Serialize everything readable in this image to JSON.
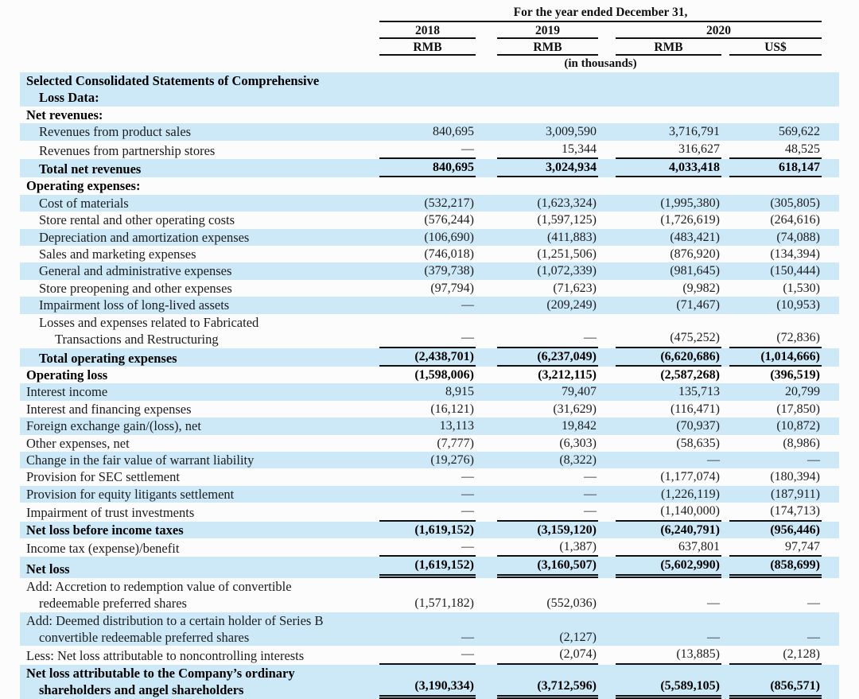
{
  "header": {
    "period_title": "For the year ended December 31,",
    "years": [
      "2018",
      "2019",
      "2020"
    ],
    "currencies": [
      "RMB",
      "RMB",
      "RMB",
      "US$"
    ],
    "units_note": "(in thousands)"
  },
  "colors": {
    "row_highlight": "#cde9f8",
    "rule": "#101010"
  },
  "table": {
    "rows": [
      {
        "label": "Selected Consolidated Statements of Comprehensive",
        "label2": "Loss Data:",
        "indent": 0,
        "indent2": 1,
        "bold": true,
        "shaded": true,
        "values": [
          "",
          "",
          "",
          ""
        ],
        "rule": "none"
      },
      {
        "label": "Net revenues:",
        "indent": 0,
        "bold": true,
        "shaded": false,
        "values": [
          "",
          "",
          "",
          ""
        ],
        "rule": "none"
      },
      {
        "label": "Revenues from product sales",
        "indent": 1,
        "bold": false,
        "shaded": true,
        "values": [
          "840,695",
          "3,009,590",
          "3,716,791",
          "569,622"
        ],
        "rule": "none"
      },
      {
        "label": "Revenues from partnership stores",
        "indent": 1,
        "bold": false,
        "shaded": false,
        "values": [
          "—",
          "15,344",
          "316,627",
          "48,525"
        ],
        "rule": "single"
      },
      {
        "label": "Total net revenues",
        "indent": 1,
        "bold": true,
        "shaded": true,
        "values": [
          "840,695",
          "3,024,934",
          "4,033,418",
          "618,147"
        ],
        "rule": "single"
      },
      {
        "label": "Operating expenses:",
        "indent": 0,
        "bold": true,
        "shaded": false,
        "values": [
          "",
          "",
          "",
          ""
        ],
        "rule": "none"
      },
      {
        "label": "Cost of materials",
        "indent": 1,
        "bold": false,
        "shaded": true,
        "values": [
          "(532,217)",
          "(1,623,324)",
          "(1,995,380)",
          "(305,805)"
        ],
        "rule": "none"
      },
      {
        "label": "Store rental and other operating costs",
        "indent": 1,
        "bold": false,
        "shaded": false,
        "values": [
          "(576,244)",
          "(1,597,125)",
          "(1,726,619)",
          "(264,616)"
        ],
        "rule": "none"
      },
      {
        "label": "Depreciation and amortization expenses",
        "indent": 1,
        "bold": false,
        "shaded": true,
        "values": [
          "(106,690)",
          "(411,883)",
          "(483,421)",
          "(74,088)"
        ],
        "rule": "none"
      },
      {
        "label": "Sales and marketing expenses",
        "indent": 1,
        "bold": false,
        "shaded": false,
        "values": [
          "(746,018)",
          "(1,251,506)",
          "(876,920)",
          "(134,394)"
        ],
        "rule": "none"
      },
      {
        "label": "General and administrative expenses",
        "indent": 1,
        "bold": false,
        "shaded": true,
        "values": [
          "(379,738)",
          "(1,072,339)",
          "(981,645)",
          "(150,444)"
        ],
        "rule": "none"
      },
      {
        "label": "Store preopening and other expenses",
        "indent": 1,
        "bold": false,
        "shaded": false,
        "values": [
          "(97,794)",
          "(71,623)",
          "(9,982)",
          "(1,530)"
        ],
        "rule": "none"
      },
      {
        "label": "Impairment loss of long-lived assets",
        "indent": 1,
        "bold": false,
        "shaded": true,
        "values": [
          "—",
          "(209,249)",
          "(71,467)",
          "(10,953)"
        ],
        "rule": "none"
      },
      {
        "label": "Losses and expenses related to Fabricated",
        "label2": "Transactions and Restructuring",
        "indent": 1,
        "indent2": 2,
        "bold": false,
        "shaded": false,
        "values": [
          "—",
          "—",
          "(475,252)",
          "(72,836)"
        ],
        "rule": "single"
      },
      {
        "label": "Total operating expenses",
        "indent": 1,
        "bold": true,
        "shaded": true,
        "values": [
          "(2,438,701)",
          "(6,237,049)",
          "(6,620,686)",
          "(1,014,666)"
        ],
        "rule": "single"
      },
      {
        "label": "Operating loss",
        "indent": 0,
        "bold": true,
        "shaded": false,
        "values": [
          "(1,598,006)",
          "(3,212,115)",
          "(2,587,268)",
          "(396,519)"
        ],
        "rule": "none"
      },
      {
        "label": "Interest income",
        "indent": 0,
        "bold": false,
        "shaded": true,
        "values": [
          "8,915",
          "79,407",
          "135,713",
          "20,799"
        ],
        "rule": "none"
      },
      {
        "label": "Interest and financing expenses",
        "indent": 0,
        "bold": false,
        "shaded": false,
        "values": [
          "(16,121)",
          "(31,629)",
          "(116,471)",
          "(17,850)"
        ],
        "rule": "none"
      },
      {
        "label": "Foreign exchange gain/(loss), net",
        "indent": 0,
        "bold": false,
        "shaded": true,
        "values": [
          "13,113",
          "19,842",
          "(70,937)",
          "(10,872)"
        ],
        "rule": "none"
      },
      {
        "label": "Other expenses, net",
        "indent": 0,
        "bold": false,
        "shaded": false,
        "values": [
          "(7,777)",
          "(6,303)",
          "(58,635)",
          "(8,986)"
        ],
        "rule": "none"
      },
      {
        "label": "Change in the fair value of warrant liability",
        "indent": 0,
        "bold": false,
        "shaded": true,
        "values": [
          "(19,276)",
          "(8,322)",
          "—",
          "—"
        ],
        "rule": "none"
      },
      {
        "label": "Provision for SEC settlement",
        "indent": 0,
        "bold": false,
        "shaded": false,
        "values": [
          "—",
          "—",
          "(1,177,074)",
          "(180,394)"
        ],
        "rule": "none"
      },
      {
        "label": "Provision for equity litigants settlement",
        "indent": 0,
        "bold": false,
        "shaded": true,
        "values": [
          "—",
          "—",
          "(1,226,119)",
          "(187,911)"
        ],
        "rule": "none"
      },
      {
        "label": "Impairment of trust investments",
        "indent": 0,
        "bold": false,
        "shaded": false,
        "values": [
          "—",
          "—",
          "(1,140,000)",
          "(174,713)"
        ],
        "rule": "single"
      },
      {
        "label": "Net loss before income taxes",
        "indent": 0,
        "bold": true,
        "shaded": true,
        "values": [
          "(1,619,152)",
          "(3,159,120)",
          "(6,240,791)",
          "(956,446)"
        ],
        "rule": "none"
      },
      {
        "label": "Income tax (expense)/benefit",
        "indent": 0,
        "bold": false,
        "shaded": false,
        "values": [
          "—",
          "(1,387)",
          "637,801",
          "97,747"
        ],
        "rule": "single"
      },
      {
        "label": "Net loss",
        "indent": 0,
        "bold": true,
        "shaded": true,
        "values": [
          "(1,619,152)",
          "(3,160,507)",
          "(5,602,990)",
          "(858,699)"
        ],
        "rule": "double"
      },
      {
        "label": "Add: Accretion to redemption value of convertible",
        "label2": "redeemable preferred shares",
        "indent": 0,
        "indent2": 1,
        "bold": false,
        "shaded": false,
        "values": [
          "(1,571,182)",
          "(552,036)",
          "—",
          "—"
        ],
        "rule": "none"
      },
      {
        "label": "Add: Deemed distribution to a certain holder of Series B",
        "label2": "convertible redeemable preferred shares",
        "indent": 0,
        "indent2": 1,
        "bold": false,
        "shaded": true,
        "values": [
          "—",
          "(2,127)",
          "—",
          "—"
        ],
        "rule": "none"
      },
      {
        "label": "Less: Net loss attributable to noncontrolling interests",
        "indent": 0,
        "bold": false,
        "shaded": false,
        "values": [
          "—",
          "(2,074)",
          "(13,885)",
          "(2,128)"
        ],
        "rule": "single"
      },
      {
        "label": "Net loss attributable to the Company’s ordinary",
        "label2": "shareholders and angel shareholders",
        "indent": 0,
        "indent2": 1,
        "bold": true,
        "shaded": true,
        "values": [
          "(3,190,334)",
          "(3,712,596)",
          "(5,589,105)",
          "(856,571)"
        ],
        "rule": "double"
      }
    ]
  }
}
